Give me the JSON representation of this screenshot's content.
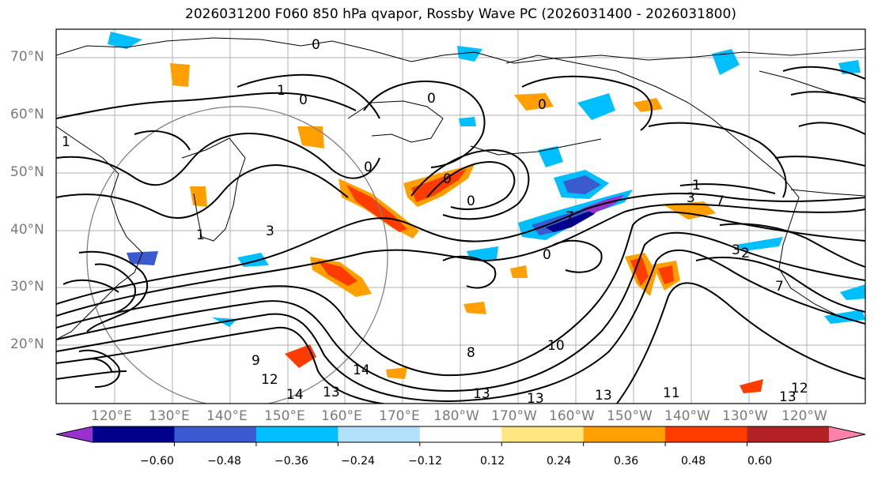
{
  "title": "2026031200 F060 850 hPa qvapor, Rossby Wave PC (2026031400 - 2026031800)",
  "map": {
    "lat_labels": [
      "70°N",
      "60°N",
      "50°N",
      "40°N",
      "30°N",
      "20°N"
    ],
    "lon_labels": [
      "120°E",
      "130°E",
      "140°E",
      "150°E",
      "160°E",
      "170°E",
      "180°W",
      "170°W",
      "160°W",
      "150°W",
      "140°W",
      "130°W",
      "120°W"
    ],
    "contour_labels": [
      "0",
      "0",
      "0",
      "1",
      "0",
      "1",
      "1",
      "3",
      "0",
      "0",
      "0",
      "0",
      "1",
      "3",
      "3",
      "7",
      "8",
      "9",
      "12",
      "14",
      "13",
      "13",
      "13",
      "13",
      "11",
      "13",
      "12",
      "10",
      "7",
      "2",
      "7",
      "14"
    ]
  },
  "colorbar": {
    "colors": [
      "#9932cc",
      "#00008b",
      "#3a5bd0",
      "#00bfff",
      "#b0e0fa",
      "#ffffff",
      "#ffe680",
      "#ffa000",
      "#ff3c00",
      "#b22222",
      "#ff82ab"
    ],
    "ticks": [
      "−0.60",
      "−0.48",
      "−0.36",
      "−0.24",
      "−0.12",
      "0.12",
      "0.24",
      "0.36",
      "0.48",
      "0.60"
    ]
  }
}
